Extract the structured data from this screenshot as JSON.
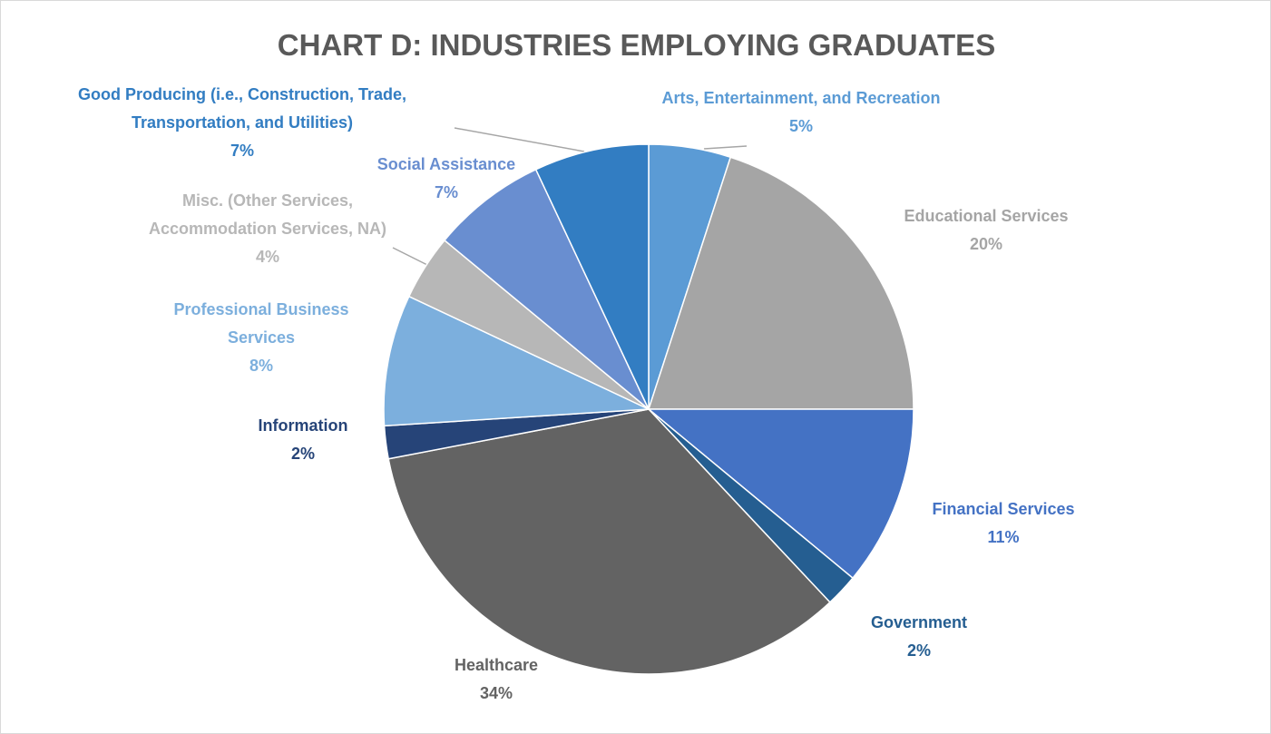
{
  "chart_data": {
    "type": "pie",
    "title": "CHART D: INDUSTRIES EMPLOYING GRADUATES",
    "categories": [
      "Arts, Entertainment, and Recreation",
      "Educational Services",
      "Financial Services",
      "Government",
      "Healthcare",
      "Information",
      "Professional Business Services",
      "Misc. (Other Services, Accommodation Services, NA)",
      "Social Assistance",
      "Good Producing (i.e., Construction, Trade, Transportation, and Utilities)"
    ],
    "values": [
      5,
      20,
      11,
      2,
      34,
      2,
      8,
      4,
      7,
      7
    ],
    "value_labels": [
      "5%",
      "20%",
      "11%",
      "2%",
      "34%",
      "2%",
      "8%",
      "4%",
      "7%",
      "7%"
    ],
    "colors": [
      "#5b9bd5",
      "#a5a5a5",
      "#4472c4",
      "#255e91",
      "#636363",
      "#264478",
      "#7cafdd",
      "#b7b7b7",
      "#698ed0",
      "#327dc2"
    ]
  }
}
